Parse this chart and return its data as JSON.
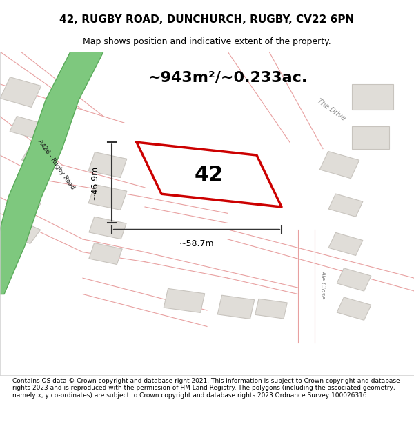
{
  "title": "42, RUGBY ROAD, DUNCHURCH, RUGBY, CV22 6PN",
  "subtitle": "Map shows position and indicative extent of the property.",
  "area_label": "~943m²/~0.233ac.",
  "number_label": "42",
  "dim_width_label": "~58.7m",
  "dim_height_label": "~46.9m",
  "road_label": "A426 - Rugby Road",
  "road_label2": "The Drive",
  "road_label3": "Ale Close",
  "footer_text": "Contains OS data © Crown copyright and database right 2021. This information is subject to Crown copyright and database rights 2023 and is reproduced with the permission of HM Land Registry. The polygons (including the associated geometry, namely x, y co-ordinates) are subject to Crown copyright and database rights 2023 Ordnance Survey 100026316.",
  "bg_color": "#f5f5f5",
  "map_bg": "#f0eeec",
  "road_green_color": "#7ec87e",
  "road_green_stroke": "#5aaa5a",
  "property_color": "#cc0000",
  "building_fill": "#e0ddd8",
  "building_stroke": "#c8c4be",
  "road_pink_stroke": "#e8a0a0",
  "road_light_pink": "#f5d0d0",
  "dim_line_color": "#333333",
  "text_color": "#000000",
  "map_area": [
    0.0,
    0.08,
    1.0,
    0.845
  ]
}
